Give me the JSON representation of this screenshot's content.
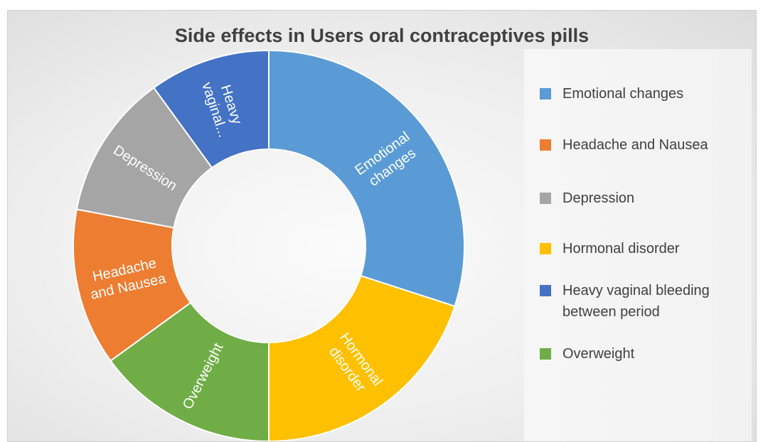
{
  "chart_data": {
    "type": "pie",
    "title": "Side effects in Users oral contraceptives pills",
    "slices": [
      {
        "name": "Emotional changes",
        "slice_label": [
          "Emotional",
          "changes"
        ],
        "value": 30,
        "color": "#5B9BD5"
      },
      {
        "name": "Hormonal disorder",
        "slice_label": [
          "Hormonal",
          "disorder"
        ],
        "value": 20,
        "color": "#FFC000"
      },
      {
        "name": "Overweight",
        "slice_label": [
          "Overweight"
        ],
        "value": 15,
        "color": "#70AD47"
      },
      {
        "name": "Headache and Nausea",
        "slice_label": [
          "Headache",
          "and Nausea"
        ],
        "value": 13,
        "color": "#ED7D31"
      },
      {
        "name": "Depression",
        "slice_label": [
          "Depression"
        ],
        "value": 12,
        "color": "#A5A5A5"
      },
      {
        "name": "Heavy vaginal bleeding between period",
        "slice_label": [
          "Heavy",
          "vaginal..."
        ],
        "value": 10,
        "color": "#4472C4"
      }
    ],
    "legend": [
      {
        "label": "Emotional changes",
        "color": "#5B9BD5"
      },
      {
        "label": "Headache and Nausea",
        "color": "#ED7D31"
      },
      {
        "label": "Depression",
        "color": "#A5A5A5"
      },
      {
        "label": "Hormonal disorder",
        "color": "#FFC000"
      },
      {
        "label": "Heavy vaginal bleeding between period",
        "color": "#4472C4"
      },
      {
        "label": "Overweight",
        "color": "#70AD47"
      }
    ],
    "legend_position": "right",
    "hole": "donut"
  }
}
